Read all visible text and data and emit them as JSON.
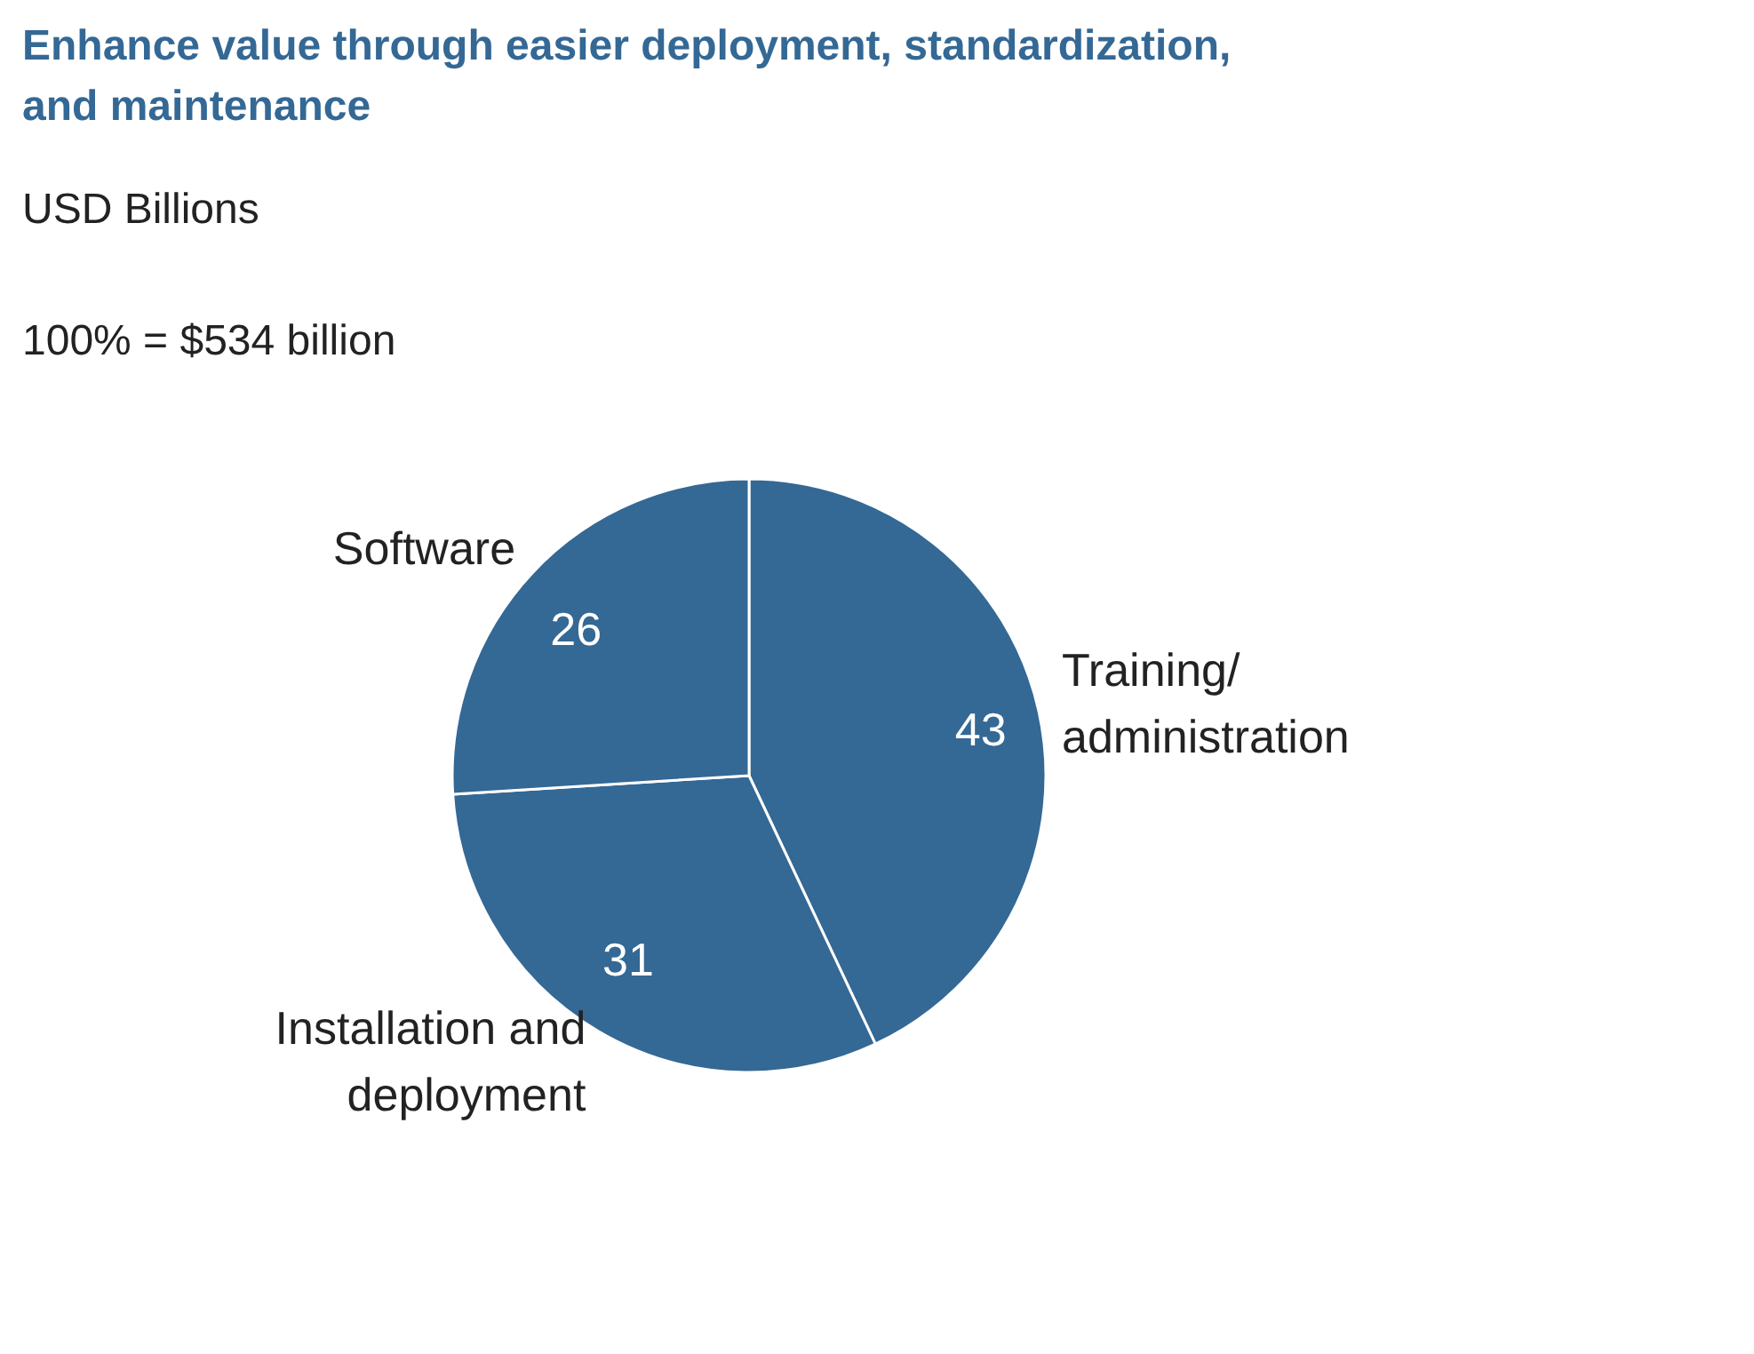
{
  "chart_data": {
    "type": "pie",
    "title": "Enhance value through easier deployment, standardization,\nand maintenance",
    "subtitle": "USD Billions",
    "annotations": [
      "100% = $534 billion"
    ],
    "categories": [
      "Training/\nadministration",
      "Installation and\ndeployment",
      "Software"
    ],
    "values": [
      43,
      31,
      26
    ],
    "colors": [
      "#346895",
      "#346895",
      "#346895"
    ],
    "data_labels": true
  }
}
